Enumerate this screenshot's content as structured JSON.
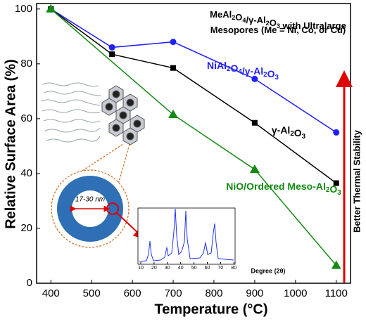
{
  "chart_data": {
    "type": "line",
    "title": [
      "MeAl2O4/γ-Al2O3  with Ultralarge",
      "Mesopores (Me = Ni, Co, or Cu)"
    ],
    "xlabel": "Temperature (°C)",
    "ylabel": "Relative Surface Area (%)",
    "xlim": [
      365,
      1135
    ],
    "ylim": [
      0,
      102
    ],
    "xticks": [
      400,
      500,
      600,
      700,
      800,
      900,
      1000,
      1100
    ],
    "yticks": [
      0,
      20,
      40,
      60,
      80,
      100
    ],
    "series": [
      {
        "name": "NiAl2O4/γ-Al2O3",
        "color": "#1f1fff",
        "marker": "circle",
        "x": [
          400,
          550,
          700,
          900,
          1100
        ],
        "values": [
          100,
          86,
          88,
          74.5,
          55
        ]
      },
      {
        "name": "γ-Al2O3",
        "color": "#000000",
        "marker": "square",
        "x": [
          400,
          550,
          700,
          900,
          1100
        ],
        "values": [
          100,
          83.5,
          78.5,
          58.5,
          36.5
        ]
      },
      {
        "name": "NiO/Ordered Meso-Al2O3",
        "color": "#138a13",
        "marker": "triangle",
        "x": [
          400,
          700,
          900,
          1100
        ],
        "values": [
          100,
          61.5,
          41.5,
          6.5
        ]
      }
    ],
    "annotations": {
      "stability": "Better Thermal Stability",
      "pore": "17-30 nm"
    },
    "inset": {
      "xlabel": "Degree (2θ)",
      "xticks": [
        10,
        20,
        30,
        40,
        50,
        60,
        70,
        80
      ]
    }
  }
}
